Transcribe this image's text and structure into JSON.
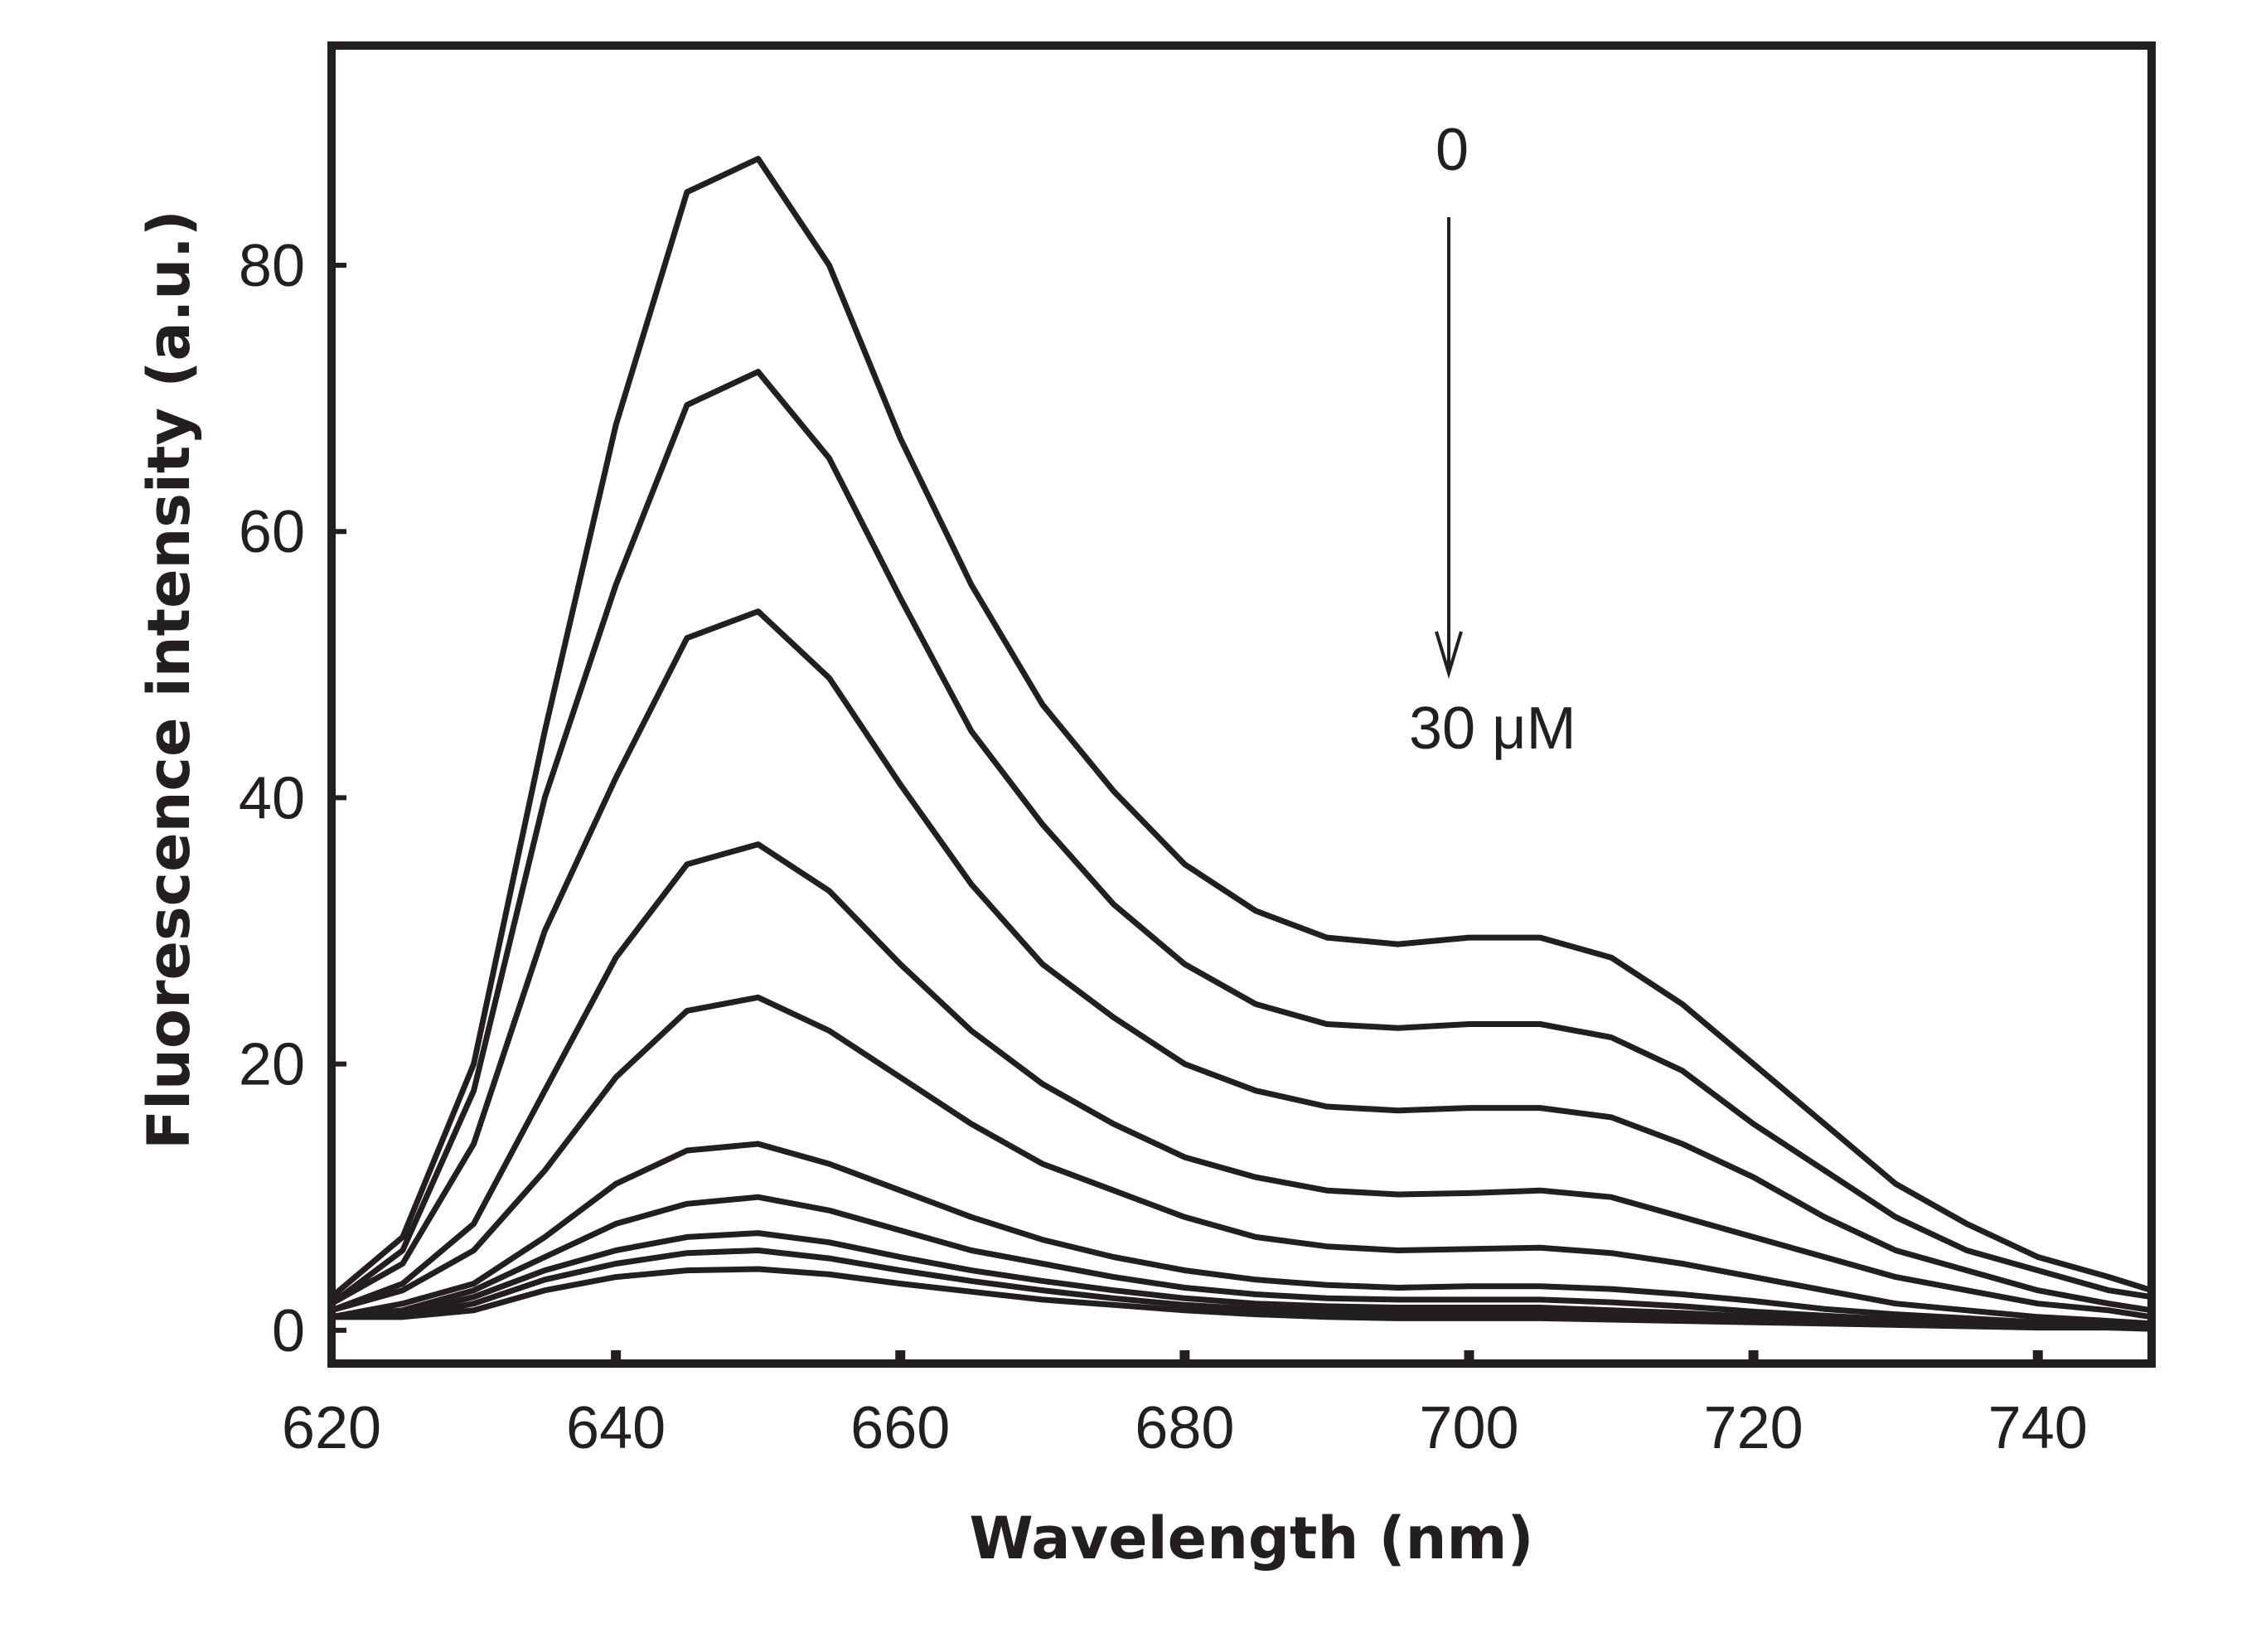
{
  "chart_data": {
    "type": "line",
    "xlabel": "Wavelength (nm)",
    "ylabel": "Fluorescence intensity (a.u.)",
    "xlim": [
      620,
      748
    ],
    "ylim": [
      -2.5,
      96.5
    ],
    "x_ticks": [
      620,
      640,
      660,
      680,
      700,
      720,
      740
    ],
    "x_tick_labels": [
      "620",
      "640",
      "660",
      "680",
      "700",
      "720",
      "740"
    ],
    "y_ticks": [
      0,
      20,
      40,
      60,
      80
    ],
    "y_tick_labels": [
      "0",
      "20",
      "40",
      "60",
      "80"
    ],
    "grid": false,
    "legend": "none",
    "line_color": "#231f20",
    "annotations": {
      "top_label": "0",
      "bottom_label": "30 μM",
      "arrow_direction": "down"
    },
    "x": [
      620,
      625,
      630,
      635,
      640,
      645,
      650,
      655,
      660,
      665,
      670,
      675,
      680,
      685,
      690,
      695,
      700,
      705,
      710,
      715,
      720,
      725,
      730,
      735,
      740,
      745,
      748
    ],
    "series": [
      {
        "values": [
          2.5,
          7,
          20,
          45,
          68,
          85.5,
          88,
          80,
          67,
          56,
          47,
          40.5,
          35,
          31.5,
          29.5,
          29,
          29.5,
          29.5,
          28,
          24.5,
          20,
          15.5,
          11,
          8,
          5.5,
          4,
          3
        ]
      },
      {
        "values": [
          2,
          6,
          18,
          40,
          56,
          69.5,
          72,
          65.5,
          55,
          45,
          38,
          32,
          27.5,
          24.5,
          23,
          22.7,
          23,
          23,
          22,
          19.5,
          15.5,
          12,
          8.5,
          6,
          4.5,
          3,
          2.5
        ]
      },
      {
        "values": [
          2,
          5,
          14,
          30,
          41.5,
          52,
          54,
          49,
          41,
          33.5,
          27.5,
          23.5,
          20,
          18,
          16.8,
          16.5,
          16.7,
          16.7,
          16,
          14,
          11.5,
          8.5,
          6,
          4.5,
          3,
          2,
          1.5
        ]
      },
      {
        "values": [
          1.5,
          3.5,
          8,
          18,
          28,
          35,
          36.5,
          33,
          27.5,
          22.5,
          18.5,
          15.5,
          13,
          11.5,
          10.5,
          10.2,
          10.3,
          10.5,
          10,
          8.5,
          7,
          5.5,
          4,
          3,
          2,
          1.5,
          1
        ]
      },
      {
        "values": [
          1.5,
          3,
          6,
          12,
          19,
          24,
          25,
          22.5,
          19,
          15.5,
          12.5,
          10.5,
          8.5,
          7,
          6.3,
          6.0,
          6.1,
          6.2,
          5.8,
          5,
          4,
          3,
          2,
          1.5,
          1,
          0.7,
          0.5
        ]
      },
      {
        "values": [
          1,
          2,
          3.5,
          7,
          11,
          13.5,
          14,
          12.5,
          10.5,
          8.5,
          6.8,
          5.5,
          4.5,
          3.8,
          3.4,
          3.2,
          3.3,
          3.3,
          3.1,
          2.7,
          2.2,
          1.6,
          1.2,
          0.9,
          0.6,
          0.5,
          0.4
        ]
      },
      {
        "values": [
          1,
          1.5,
          3,
          5.5,
          8,
          9.5,
          10,
          9,
          7.5,
          6,
          5,
          4,
          3.2,
          2.7,
          2.4,
          2.3,
          2.3,
          2.3,
          2.1,
          1.8,
          1.4,
          1.1,
          0.8,
          0.6,
          0.5,
          0.4,
          0.3
        ]
      },
      {
        "values": [
          1,
          1.2,
          2.5,
          4.5,
          6,
          7,
          7.3,
          6.6,
          5.5,
          4.5,
          3.7,
          3,
          2.4,
          2,
          1.8,
          1.7,
          1.7,
          1.7,
          1.5,
          1.3,
          1,
          0.8,
          0.6,
          0.5,
          0.4,
          0.3,
          0.3
        ]
      },
      {
        "values": [
          1,
          1,
          2,
          3.8,
          5,
          5.8,
          6,
          5.4,
          4.5,
          3.7,
          3,
          2.4,
          1.9,
          1.6,
          1.4,
          1.3,
          1.3,
          1.3,
          1.2,
          1,
          0.8,
          0.6,
          0.5,
          0.4,
          0.3,
          0.2,
          0.2
        ]
      },
      {
        "values": [
          1,
          1,
          1.5,
          3,
          4,
          4.5,
          4.6,
          4.2,
          3.5,
          2.9,
          2.3,
          1.9,
          1.5,
          1.2,
          1,
          0.9,
          0.9,
          0.9,
          0.8,
          0.7,
          0.6,
          0.5,
          0.4,
          0.3,
          0.2,
          0.2,
          0.1
        ]
      }
    ]
  }
}
